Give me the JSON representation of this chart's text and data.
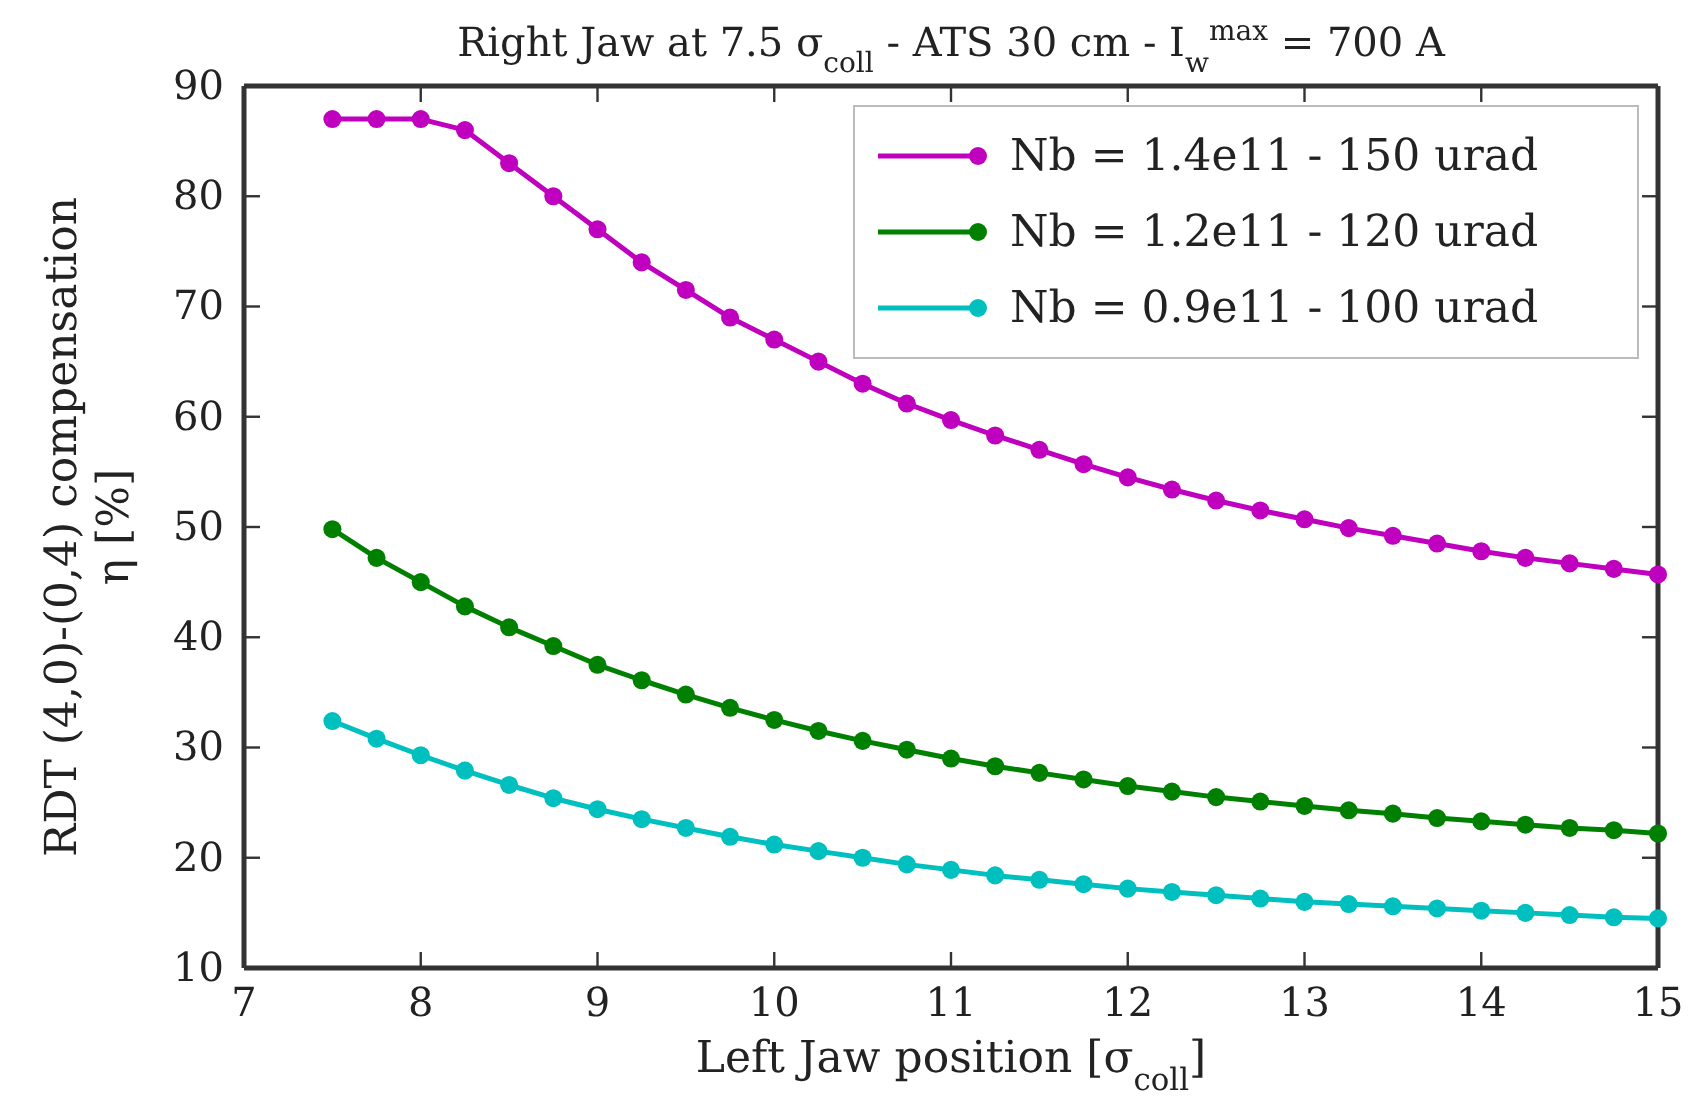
{
  "chart_data": {
    "type": "line",
    "title": "Right Jaw at 7.5 σ$_{coll}$ - ATS 30 cm - I$_{w}$$^{max}$ = 700 A",
    "xlabel": "Left Jaw position [σ$_{coll}$]",
    "ylabel": "RDT (4,0)-(0,4) compensation\nη [%]",
    "x": [
      7.5,
      7.75,
      8,
      8.25,
      8.5,
      8.75,
      9,
      9.25,
      9.5,
      9.75,
      10,
      10.25,
      10.5,
      10.75,
      11,
      11.25,
      11.5,
      11.75,
      12,
      12.25,
      12.5,
      12.75,
      13,
      13.25,
      13.5,
      13.75,
      14,
      14.25,
      14.5,
      14.75,
      15
    ],
    "series": [
      {
        "name": "Nb = 1.4e11 - 150 urad",
        "color": "#bf00bf",
        "values": [
          87,
          87,
          87,
          86,
          83,
          80,
          77,
          74,
          71.5,
          69,
          67,
          65,
          63,
          61.2,
          59.7,
          58.3,
          57,
          55.7,
          54.5,
          53.4,
          52.4,
          51.5,
          50.7,
          49.9,
          49.2,
          48.5,
          47.8,
          47.2,
          46.7,
          46.2,
          45.7
        ]
      },
      {
        "name": "Nb = 1.2e11 - 120 urad",
        "color": "#008000",
        "values": [
          49.8,
          47.2,
          45,
          42.8,
          40.9,
          39.2,
          37.5,
          36.1,
          34.8,
          33.6,
          32.5,
          31.5,
          30.6,
          29.8,
          29,
          28.3,
          27.7,
          27.1,
          26.5,
          26,
          25.5,
          25.1,
          24.7,
          24.3,
          24,
          23.6,
          23.3,
          23,
          22.7,
          22.5,
          22.2
        ]
      },
      {
        "name": "Nb = 0.9e11 - 100 urad",
        "color": "#00bfbf",
        "values": [
          32.4,
          30.8,
          29.3,
          27.9,
          26.6,
          25.4,
          24.4,
          23.5,
          22.7,
          21.9,
          21.2,
          20.6,
          20,
          19.4,
          18.9,
          18.4,
          18,
          17.6,
          17.2,
          16.9,
          16.6,
          16.3,
          16,
          15.8,
          15.6,
          15.4,
          15.2,
          15,
          14.8,
          14.6,
          14.5
        ]
      }
    ],
    "xlim": [
      7,
      15
    ],
    "xticks": [
      7,
      8,
      9,
      10,
      11,
      12,
      13,
      14,
      15
    ],
    "ylim": [
      10,
      90
    ],
    "yticks": [
      10,
      20,
      30,
      40,
      50,
      60,
      70,
      80,
      90
    ],
    "legend": "top right",
    "marker": "circle",
    "line_style": "solid",
    "grid": false
  }
}
